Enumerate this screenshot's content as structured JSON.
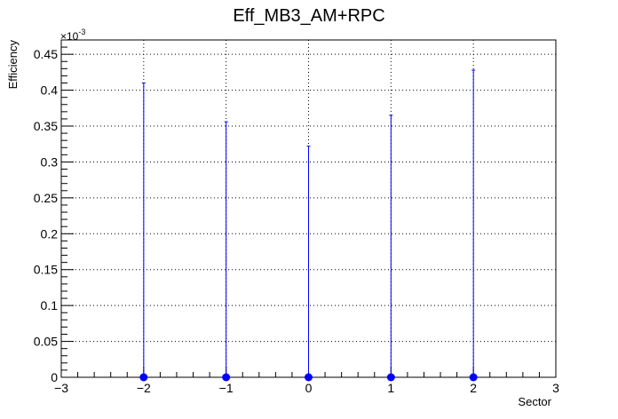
{
  "chart_data": {
    "type": "scatter",
    "title": "Eff_MB3_AM+RPC",
    "xlabel": "Sector",
    "ylabel": "Efficiency",
    "y_exponent_label": "×10",
    "y_exponent_power": "-3",
    "xlim": [
      -3,
      3
    ],
    "ylim": [
      0,
      0.47
    ],
    "grid": true,
    "x_ticks": [
      -3,
      -2,
      -1,
      0,
      1,
      2,
      3
    ],
    "x_tick_labels": [
      "−3",
      "−2",
      "−1",
      "0",
      "1",
      "2",
      "3"
    ],
    "y_ticks": [
      0,
      0.05,
      0.1,
      0.15,
      0.2,
      0.25,
      0.3,
      0.35,
      0.4,
      0.45
    ],
    "y_tick_labels": [
      "0",
      "0.05",
      "0.1",
      "0.15",
      "0.2",
      "0.25",
      "0.3",
      "0.35",
      "0.4",
      "0.45"
    ],
    "series": [
      {
        "name": "Eff_MB3_AM+RPC",
        "color": "#0000ff",
        "x": [
          -2,
          -1,
          0,
          1,
          2
        ],
        "y": [
          0,
          0,
          0,
          0,
          0
        ],
        "err_up": [
          0.41,
          0.356,
          0.322,
          0.365,
          0.428
        ]
      }
    ]
  }
}
